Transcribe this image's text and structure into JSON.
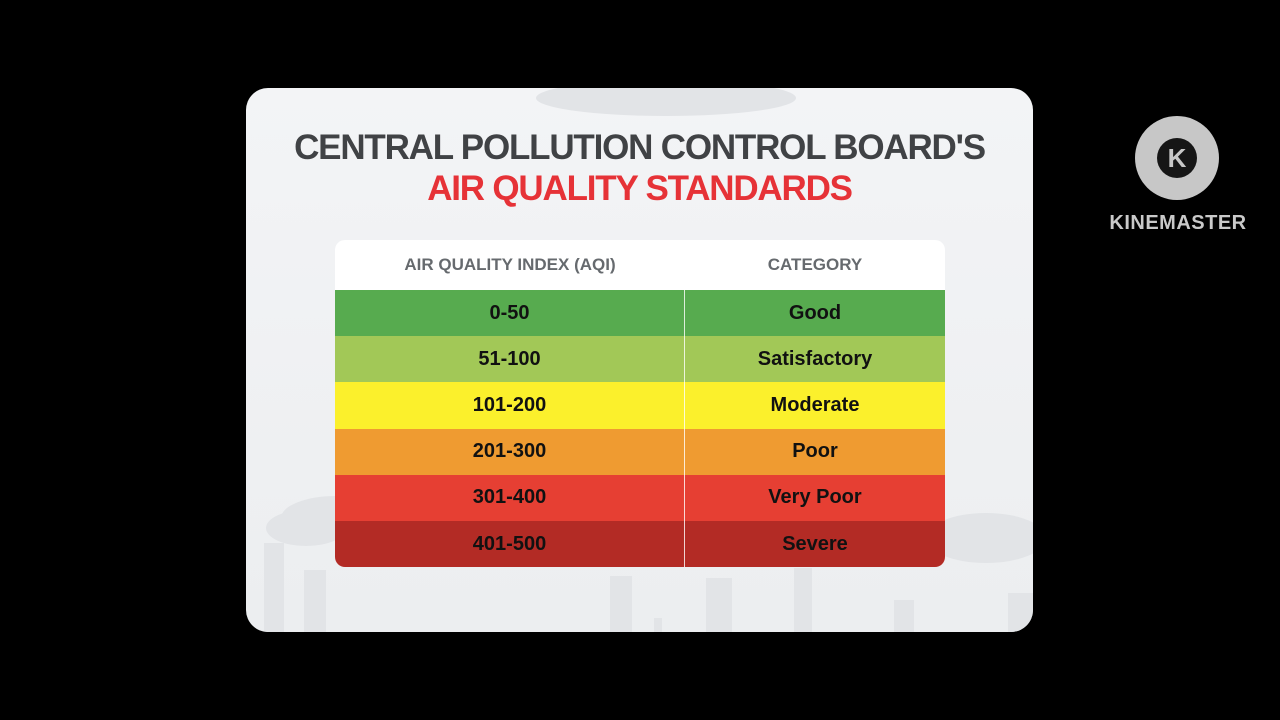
{
  "header": {
    "title_line1": "CENTRAL POLLUTION CONTROL BOARD'S",
    "title_line2": "AIR QUALITY STANDARDS"
  },
  "table": {
    "columns": [
      "AIR QUALITY INDEX (AQI)",
      "CATEGORY"
    ],
    "rows": [
      [
        "0-50",
        "Good"
      ],
      [
        "51-100",
        "Satisfactory"
      ],
      [
        "101-200",
        "Moderate"
      ],
      [
        "201-300",
        "Poor"
      ],
      [
        "301-400",
        "Very Poor"
      ],
      [
        "401-500",
        "Severe"
      ]
    ]
  },
  "watermark": {
    "logo_letter": "K",
    "text": "KINEMASTER"
  }
}
